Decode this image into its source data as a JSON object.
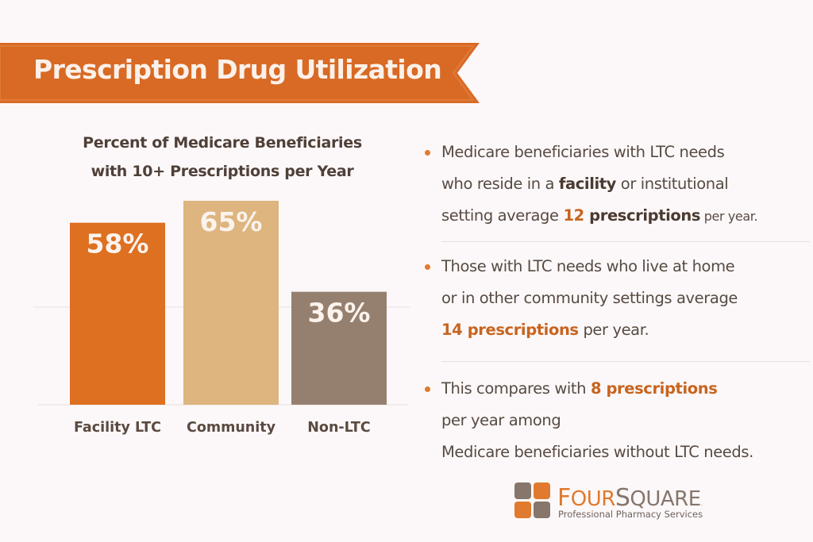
{
  "banner": {
    "title": "Prescription Drug Utilization",
    "color": "#d86a25"
  },
  "chart_data": {
    "type": "bar",
    "title": "Percent of Medicare Beneficiaries with 10+ Prescriptions per Year",
    "title_lines": [
      "Percent of Medicare Beneficiaries",
      "with 10+ Prescriptions per Year"
    ],
    "categories": [
      "Facility LTC",
      "Community",
      "Non-LTC"
    ],
    "values": [
      58,
      65,
      36
    ],
    "value_labels": [
      "58%",
      "65%",
      "36%"
    ],
    "colors": [
      "#de7021",
      "#deb47f",
      "#958070"
    ],
    "xlabel": "",
    "ylabel": "",
    "ylim": [
      0,
      65
    ],
    "grid": true,
    "legend": "none"
  },
  "bullets": [
    {
      "line1": "Medicare beneficiaries with LTC needs",
      "line2_pre": "who reside in a ",
      "line2_bold": "facility",
      "line2_post": " or institutional",
      "line3_pre": "setting average ",
      "line3_num": "12",
      "line3_bold": " prescriptions",
      "line3_post": " per year."
    },
    {
      "line1": "Those with LTC needs who live at home",
      "line2": "or in other community settings average",
      "line3_bold": "14 prescriptions",
      "line3_post": " per year."
    },
    {
      "line1_pre": "This compares with ",
      "line1_bold": "8 prescriptions",
      "line2": "per year among",
      "line3": "Medicare beneficiaries without LTC needs."
    }
  ],
  "logo": {
    "name_first_initial": "F",
    "name_first_rest": "OUR",
    "name_second_initial": "S",
    "name_second_rest": "QUARE",
    "registered": ".",
    "tagline": "Professional Pharmacy Services",
    "colors": {
      "orange": "#e07a2e",
      "taupe": "#86766c"
    }
  }
}
